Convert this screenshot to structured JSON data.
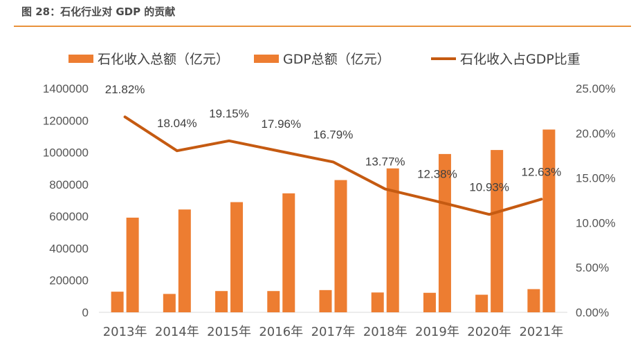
{
  "figure": {
    "title": "图 28：石化行业对 GDP 的贡献"
  },
  "chart_data": {
    "type": "bar",
    "categories": [
      "2013年",
      "2014年",
      "2015年",
      "2016年",
      "2017年",
      "2018年",
      "2019年",
      "2020年",
      "2021年"
    ],
    "series": [
      {
        "name": "石化收入总额（亿元）",
        "type": "bar",
        "axis": "left",
        "values": [
          129000,
          115000,
          133000,
          133000,
          139000,
          124000,
          122000,
          110000,
          145000
        ]
      },
      {
        "name": "GDP总额（亿元）",
        "type": "bar",
        "axis": "left",
        "values": [
          592000,
          643000,
          689000,
          744000,
          827000,
          900000,
          990000,
          1015000,
          1143000
        ]
      },
      {
        "name": "石化收入占GDP比重",
        "type": "line",
        "axis": "right",
        "values": [
          21.82,
          18.04,
          19.15,
          17.96,
          16.79,
          13.77,
          12.38,
          10.93,
          12.63
        ],
        "labels": [
          "21.82%",
          "18.04%",
          "19.15%",
          "17.96%",
          "16.79%",
          "13.77%",
          "12.38%",
          "10.93%",
          "12.63%"
        ]
      }
    ],
    "y_left": {
      "min": 0,
      "max": 1400000,
      "ticks": [
        "0",
        "200000",
        "400000",
        "600000",
        "800000",
        "1000000",
        "1200000",
        "1400000"
      ]
    },
    "y_right": {
      "min": 0,
      "max": 25,
      "ticks": [
        "0.00%",
        "5.00%",
        "10.00%",
        "15.00%",
        "20.00%",
        "25.00%"
      ]
    },
    "grid": false,
    "legend_position": "top",
    "colors": {
      "bar": "#ed7d31",
      "line": "#c55a11"
    }
  }
}
